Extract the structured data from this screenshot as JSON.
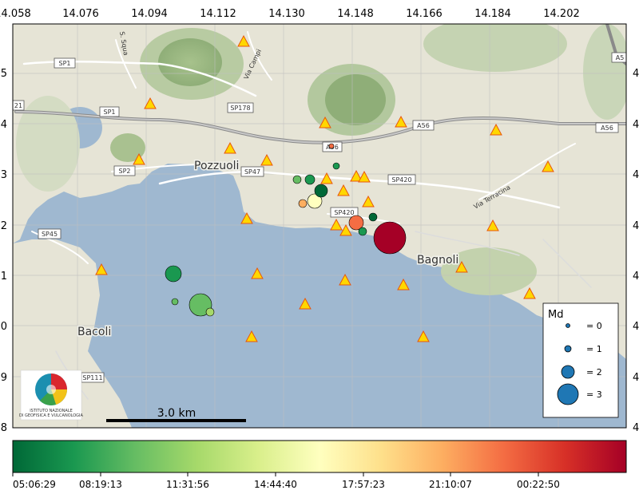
{
  "map": {
    "lon_ticks": [
      "14.058",
      "14.076",
      "14.094",
      "14.112",
      "14.130",
      "14.148",
      "14.166",
      "14.184",
      "14.202"
    ],
    "lat_ticks_left": [
      "8",
      "9",
      "0",
      "1",
      "2",
      "3",
      "4",
      "5"
    ],
    "lat_ticks_right": [
      "4",
      "4",
      "4",
      "4",
      "4",
      "4",
      "4",
      "4"
    ],
    "places": {
      "pozzuoli": "Pozzuoli",
      "bagnoli": "Bagnoli",
      "bacoli": "Bacoli"
    },
    "road_labels": [
      "SP1",
      "SP1",
      "SP178",
      "SP2",
      "SP47",
      "SP45",
      "SP420",
      "SP420",
      "A56",
      "A56",
      "A56",
      "A5",
      "21",
      "SP111"
    ],
    "street_labels": [
      "S. Squa",
      "Via Campi",
      "Via Terracina"
    ],
    "scale_bar_label": "3.0 km",
    "logo_text": [
      "ISTITUTO NAZIONALE",
      "DI GEOFISICA E VULCANOLOGIA"
    ]
  },
  "legend": {
    "title": "Md",
    "entries": [
      {
        "label": "= 0",
        "md": 0
      },
      {
        "label": "= 1",
        "md": 1
      },
      {
        "label": "= 2",
        "md": 2
      },
      {
        "label": "= 3",
        "md": 3
      }
    ]
  },
  "colorbar": {
    "ticks": [
      "05:06:29",
      "08:19:13",
      "11:31:56",
      "14:44:40",
      "17:57:23",
      "21:10:07",
      "00:22:50"
    ],
    "colormap": "RdYlGn_r",
    "colors": [
      "#006837",
      "#1a9850",
      "#66bd63",
      "#a6d96a",
      "#d9ef8b",
      "#ffffbf",
      "#fee08b",
      "#fdae61",
      "#f46d43",
      "#d73027",
      "#a50026"
    ]
  },
  "colors": {
    "sea": "#9fb8d0",
    "land": "#e6e4d6",
    "station_fill": "#ffd700",
    "station_stroke": "#e8560c"
  }
}
